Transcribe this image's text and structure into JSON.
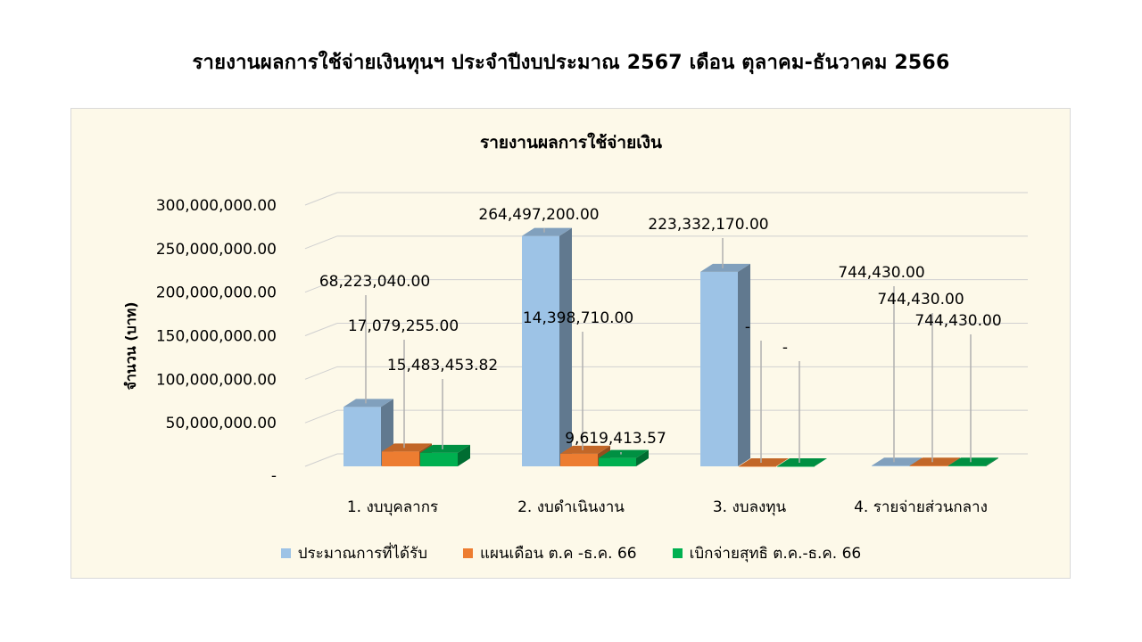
{
  "page_title": "รายงานผลการใช้จ่ายเงินทุนฯ  ประจำปีงบประมาณ  2567 เดือน ตุลาคม-ธันวาคม  2566",
  "chart_data": {
    "type": "bar",
    "title": "รายงานผลการใช้จ่ายเงิน",
    "ylabel": "จำนวน (บาท)",
    "xlabel": "",
    "ylim": [
      0,
      300000000
    ],
    "yticks": [
      0,
      50000000,
      100000000,
      150000000,
      200000000,
      250000000,
      300000000
    ],
    "ytick_labels": [
      "-",
      "50,000,000.00",
      "100,000,000.00",
      "150,000,000.00",
      "200,000,000.00",
      "250,000,000.00",
      "300,000,000.00"
    ],
    "grid": true,
    "legend_position": "bottom",
    "categories": [
      "1. งบบุคลากร",
      "2. งบดำเนินงาน",
      "3. งบลงทุน",
      "4. รายจ่ายส่วนกลาง"
    ],
    "series": [
      {
        "name": "ประมาณการที่ได้รับ",
        "color": "#9dc3e6",
        "values": [
          68223040.0,
          264497200.0,
          223332170.0,
          744430.0
        ],
        "labels": [
          "68,223,040.00",
          "264,497,200.00",
          "223,332,170.00",
          "744,430.00"
        ]
      },
      {
        "name": "แผนเดือน ต.ค -ธ.ค. 66",
        "color": "#ed7d31",
        "values": [
          17079255.0,
          14398710.0,
          0,
          744430.0
        ],
        "labels": [
          "17,079,255.00",
          "14,398,710.00",
          "-",
          "744,430.00"
        ]
      },
      {
        "name": "เบิกจ่ายสุทธิ ต.ค.-ธ.ค. 66",
        "color": "#00b050",
        "values": [
          15483453.82,
          9619413.57,
          0,
          744430.0
        ],
        "labels": [
          "15,483,453.82",
          "9,619,413.57",
          "-",
          "744,430.00"
        ]
      }
    ]
  }
}
